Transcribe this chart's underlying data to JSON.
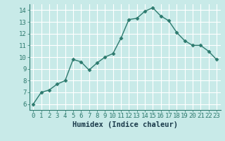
{
  "x": [
    0,
    1,
    2,
    3,
    4,
    5,
    6,
    7,
    8,
    9,
    10,
    11,
    12,
    13,
    14,
    15,
    16,
    17,
    18,
    19,
    20,
    21,
    22,
    23
  ],
  "y": [
    6.0,
    7.0,
    7.2,
    7.7,
    8.0,
    9.8,
    9.6,
    8.9,
    9.5,
    10.0,
    10.3,
    11.6,
    13.2,
    13.3,
    13.9,
    14.2,
    13.5,
    13.1,
    12.1,
    11.4,
    11.0,
    11.0,
    10.5,
    9.8
  ],
  "line_color": "#2d7a6e",
  "marker": "D",
  "marker_size": 2.5,
  "bg_color": "#c8eae8",
  "grid_color": "#ffffff",
  "xlabel": "Humidex (Indice chaleur)",
  "xlim": [
    -0.5,
    23.5
  ],
  "ylim": [
    5.5,
    14.5
  ],
  "yticks": [
    6,
    7,
    8,
    9,
    10,
    11,
    12,
    13,
    14
  ],
  "xticks": [
    0,
    1,
    2,
    3,
    4,
    5,
    6,
    7,
    8,
    9,
    10,
    11,
    12,
    13,
    14,
    15,
    16,
    17,
    18,
    19,
    20,
    21,
    22,
    23
  ],
  "tick_fontsize": 6.5,
  "xlabel_fontsize": 7.5,
  "line_width": 1.0
}
